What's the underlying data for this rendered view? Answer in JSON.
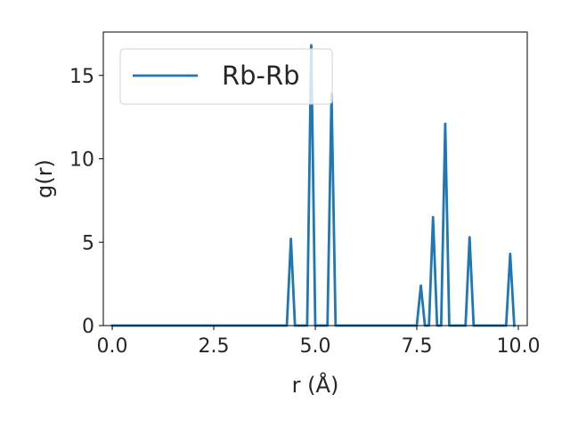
{
  "chart_data": {
    "type": "line",
    "title": "",
    "xlabel": "r (Å)",
    "ylabel": "g(r)",
    "xlim": [
      -0.22,
      10.22
    ],
    "ylim": [
      0,
      17.6
    ],
    "x_ticks": [
      0.0,
      2.5,
      5.0,
      7.5,
      10.0
    ],
    "x_tick_labels": [
      "0.0",
      "2.5",
      "5.0",
      "7.5",
      "10.0"
    ],
    "y_ticks": [
      0,
      5,
      10,
      15
    ],
    "y_tick_labels": [
      "0",
      "5",
      "10",
      "15"
    ],
    "grid": false,
    "legend_position": "upper-left",
    "series": [
      {
        "name": "Rb-Rb",
        "color": "#1f77b4",
        "x": [
          0.0,
          4.3,
          4.4,
          4.5,
          4.8,
          4.9,
          5.0,
          5.3,
          5.4,
          5.5,
          7.5,
          7.6,
          7.7,
          7.8,
          7.9,
          8.0,
          8.1,
          8.2,
          8.3,
          8.7,
          8.8,
          8.9,
          9.7,
          9.8,
          9.9
        ],
        "y": [
          0,
          0,
          5.2,
          0,
          0,
          16.8,
          0,
          0,
          13.9,
          0,
          0,
          2.4,
          0,
          0,
          6.5,
          0,
          0,
          12.1,
          0,
          0,
          5.3,
          0,
          0,
          4.3,
          0
        ]
      }
    ]
  }
}
